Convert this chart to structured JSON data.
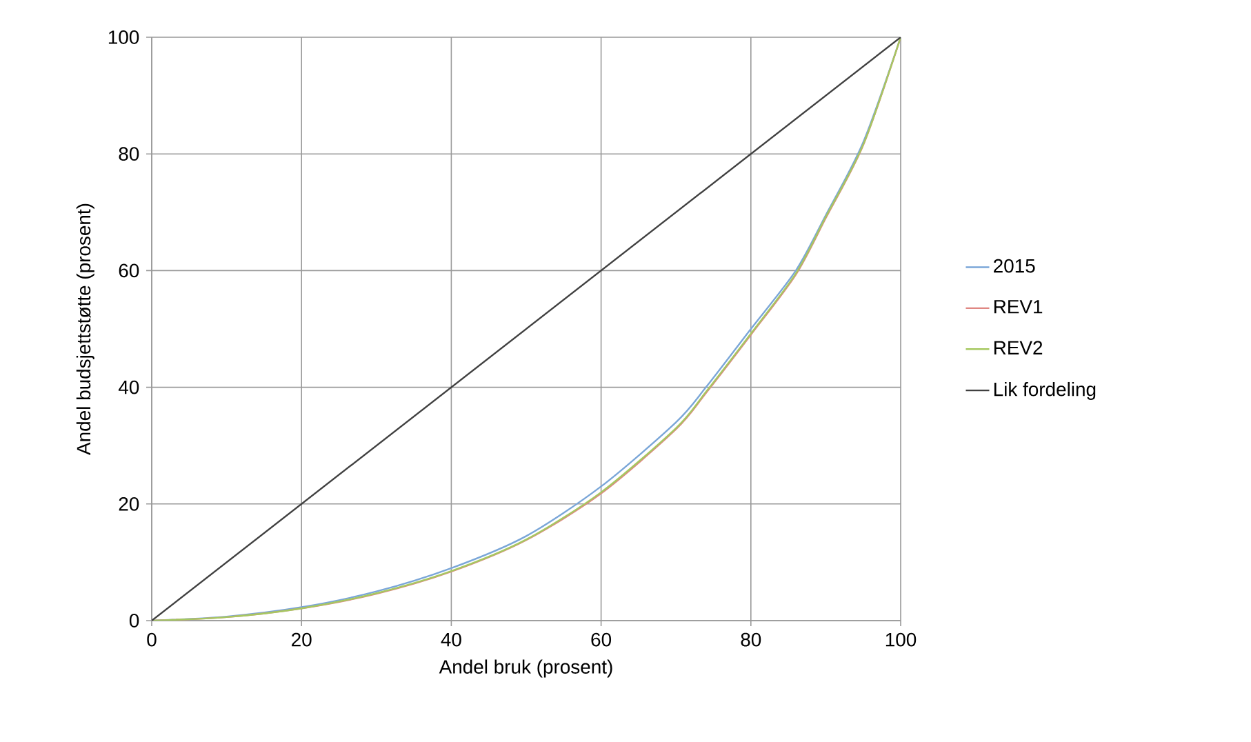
{
  "chart_data": {
    "type": "line",
    "xlabel": "Andel bruk (prosent)",
    "ylabel": "Andel budsjettstøtte (prosent)",
    "xlim": [
      0,
      100
    ],
    "ylim": [
      0,
      100
    ],
    "xticks": [
      0,
      20,
      40,
      60,
      80,
      100
    ],
    "yticks": [
      0,
      20,
      40,
      60,
      80,
      100
    ],
    "grid": true,
    "legend": "right",
    "marker": "none",
    "line_style": "solid",
    "series": [
      {
        "name": "2015",
        "color": "#7aa6d8",
        "x": [
          0,
          10,
          20,
          30,
          40,
          50,
          60,
          70,
          74,
          80,
          86,
          90,
          95,
          100
        ],
        "values": [
          0,
          0.7,
          2.3,
          5,
          9,
          14.5,
          23,
          34,
          40,
          50,
          60,
          69.5,
          82,
          100
        ]
      },
      {
        "name": "REV1",
        "color": "#e08783",
        "x": [
          0,
          10,
          20,
          30,
          40,
          50,
          60,
          70,
          74,
          80,
          86,
          90,
          95,
          100
        ],
        "values": [
          0,
          0.6,
          2.1,
          4.6,
          8.4,
          13.8,
          21.8,
          32.8,
          39,
          49,
          59.3,
          69,
          81.5,
          100
        ]
      },
      {
        "name": "REV2",
        "color": "#a6c860",
        "x": [
          0,
          10,
          20,
          30,
          40,
          50,
          60,
          70,
          74,
          80,
          86,
          90,
          95,
          100
        ],
        "values": [
          0,
          0.6,
          2.1,
          4.7,
          8.5,
          13.9,
          22,
          33,
          39.2,
          49.2,
          59.5,
          69.2,
          81.6,
          100
        ]
      },
      {
        "name": "Lik fordeling",
        "color": "#404040",
        "x": [
          0,
          100
        ],
        "values": [
          0,
          100
        ]
      }
    ]
  }
}
